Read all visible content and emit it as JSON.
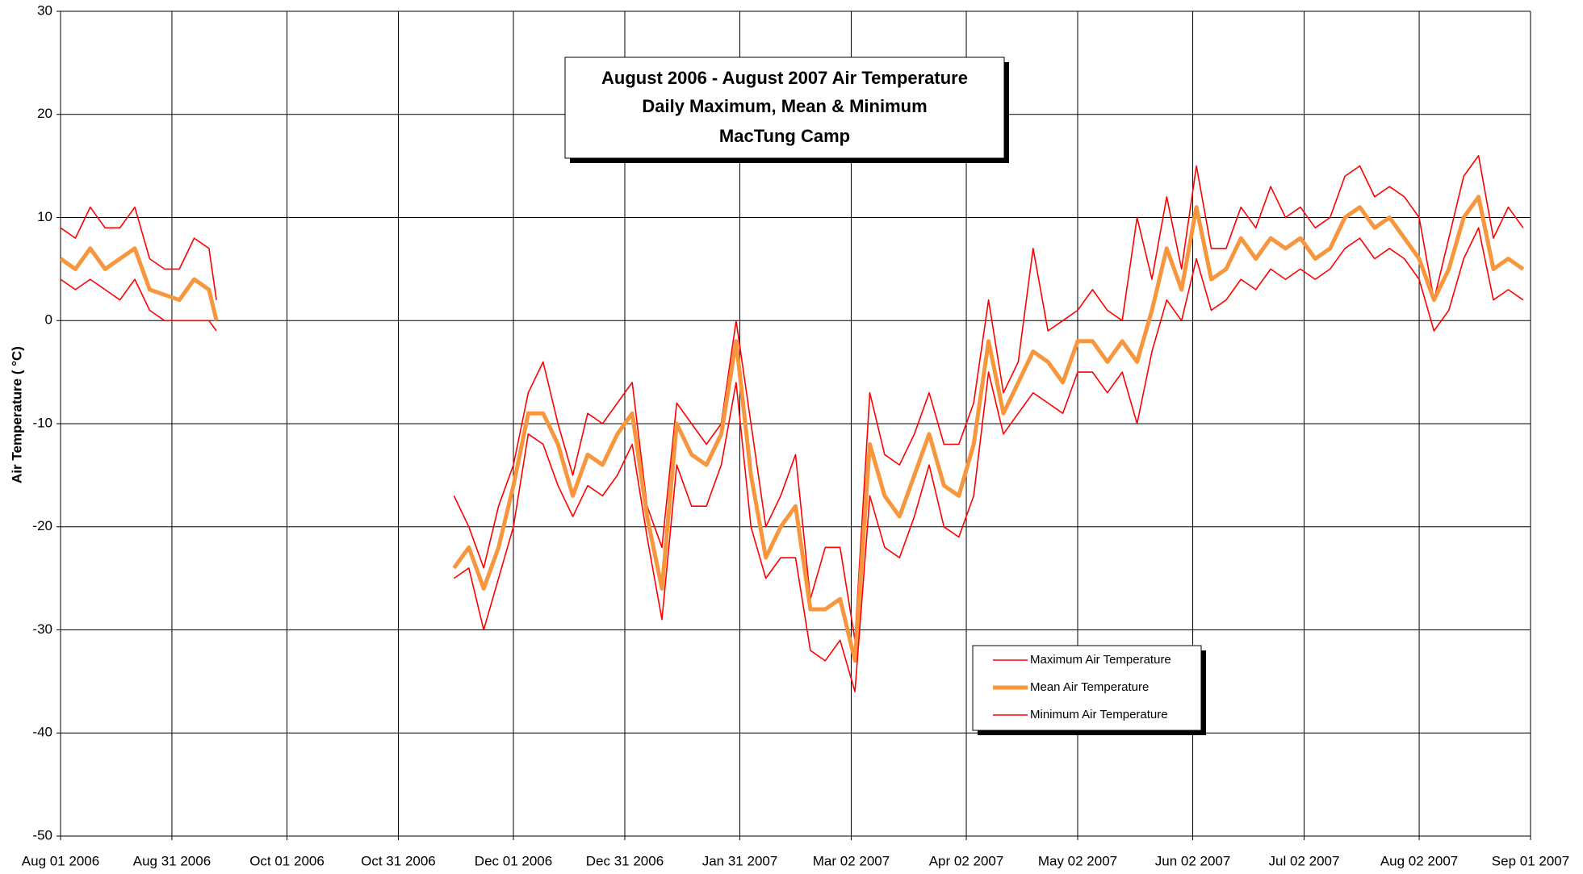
{
  "chart_data": {
    "type": "line",
    "title": "August 2006 - August 2007 Air Temperature",
    "subtitle": "Daily Maximum, Mean & Minimum",
    "site": "MacTung Camp",
    "ylabel": "Air Temperature ( °C)",
    "x": [
      "2006-08-01",
      "2006-08-05",
      "2006-08-09",
      "2006-08-13",
      "2006-08-17",
      "2006-08-21",
      "2006-08-25",
      "2006-08-29",
      "2006-09-02",
      "2006-09-06",
      "2006-09-10",
      "2006-09-12",
      "2006-10-15",
      "2006-11-15",
      "2006-11-19",
      "2006-11-23",
      "2006-11-27",
      "2006-12-01",
      "2006-12-05",
      "2006-12-09",
      "2006-12-13",
      "2006-12-17",
      "2006-12-21",
      "2006-12-25",
      "2006-12-29",
      "2007-01-02",
      "2007-01-06",
      "2007-01-10",
      "2007-01-14",
      "2007-01-18",
      "2007-01-22",
      "2007-01-26",
      "2007-01-30",
      "2007-02-03",
      "2007-02-07",
      "2007-02-11",
      "2007-02-15",
      "2007-02-19",
      "2007-02-23",
      "2007-02-27",
      "2007-03-03",
      "2007-03-07",
      "2007-03-11",
      "2007-03-15",
      "2007-03-19",
      "2007-03-23",
      "2007-03-27",
      "2007-03-31",
      "2007-04-04",
      "2007-04-08",
      "2007-04-12",
      "2007-04-16",
      "2007-04-20",
      "2007-04-24",
      "2007-04-28",
      "2007-05-02",
      "2007-05-06",
      "2007-05-10",
      "2007-05-14",
      "2007-05-18",
      "2007-05-22",
      "2007-05-26",
      "2007-05-30",
      "2007-06-03",
      "2007-06-07",
      "2007-06-11",
      "2007-06-15",
      "2007-06-19",
      "2007-06-23",
      "2007-06-27",
      "2007-07-01",
      "2007-07-05",
      "2007-07-09",
      "2007-07-13",
      "2007-07-17",
      "2007-07-21",
      "2007-07-25",
      "2007-07-29",
      "2007-08-02",
      "2007-08-06",
      "2007-08-10",
      "2007-08-14",
      "2007-08-18",
      "2007-08-22",
      "2007-08-26",
      "2007-08-30"
    ],
    "series": [
      {
        "name": "Maximum Air Temperature",
        "color": "#ff0000",
        "values": [
          9,
          8,
          11,
          9,
          9,
          11,
          6,
          5,
          5,
          8,
          7,
          2,
          null,
          -17,
          -20,
          -24,
          -18,
          -14,
          -7,
          -4,
          -10,
          -15,
          -9,
          -10,
          -8,
          -6,
          -18,
          -22,
          -8,
          -10,
          -12,
          -10,
          0,
          -10,
          -20,
          -17,
          -13,
          -27,
          -22,
          -22,
          -31,
          -7,
          -13,
          -14,
          -11,
          -7,
          -12,
          -12,
          -8,
          2,
          -7,
          -4,
          7,
          -1,
          0,
          1,
          3,
          1,
          0,
          10,
          4,
          12,
          5,
          15,
          7,
          7,
          11,
          9,
          13,
          10,
          11,
          9,
          10,
          14,
          15,
          12,
          13,
          12,
          10,
          2,
          8,
          14,
          16,
          8,
          11,
          9
        ]
      },
      {
        "name": "Mean Air Temperature",
        "color": "#f7963c",
        "values": [
          6,
          5,
          7,
          5,
          6,
          7,
          3,
          2.5,
          2,
          4,
          3,
          0,
          null,
          -24,
          -22,
          -26,
          -22,
          -16,
          -9,
          -9,
          -12,
          -17,
          -13,
          -14,
          -11,
          -9,
          -19,
          -26,
          -10,
          -13,
          -14,
          -11,
          -2,
          -15,
          -23,
          -20,
          -18,
          -28,
          -28,
          -27,
          -33,
          -12,
          -17,
          -19,
          -15,
          -11,
          -16,
          -17,
          -12,
          -2,
          -9,
          -6,
          -3,
          -4,
          -6,
          -2,
          -2,
          -4,
          -2,
          -4,
          1,
          7,
          3,
          11,
          4,
          5,
          8,
          6,
          8,
          7,
          8,
          6,
          7,
          10,
          11,
          9,
          10,
          8,
          6,
          2,
          5,
          10,
          12,
          5,
          6,
          5
        ]
      },
      {
        "name": "Minimum Air Temperature",
        "color": "#ff0000",
        "values": [
          4,
          3,
          4,
          3,
          2,
          4,
          1,
          0,
          0,
          0,
          0,
          -1,
          null,
          -25,
          -24,
          -30,
          -25,
          -20,
          -11,
          -12,
          -16,
          -19,
          -16,
          -17,
          -15,
          -12,
          -21,
          -29,
          -14,
          -18,
          -18,
          -14,
          -6,
          -20,
          -25,
          -23,
          -23,
          -32,
          -33,
          -31,
          -36,
          -17,
          -22,
          -23,
          -19,
          -14,
          -20,
          -21,
          -17,
          -5,
          -11,
          -9,
          -7,
          -8,
          -9,
          -5,
          -5,
          -7,
          -5,
          -10,
          -3,
          2,
          0,
          6,
          1,
          2,
          4,
          3,
          5,
          4,
          5,
          4,
          5,
          7,
          8,
          6,
          7,
          6,
          4,
          -1,
          1,
          6,
          9,
          2,
          3,
          2
        ]
      }
    ],
    "xlim": [
      "2006-08-01",
      "2007-09-01"
    ],
    "xticks": [
      {
        "value": "2006-08-01",
        "label": "Aug 01 2006"
      },
      {
        "value": "2006-08-31",
        "label": "Aug 31 2006"
      },
      {
        "value": "2006-10-01",
        "label": "Oct 01 2006"
      },
      {
        "value": "2006-10-31",
        "label": "Oct 31 2006"
      },
      {
        "value": "2006-12-01",
        "label": "Dec 01 2006"
      },
      {
        "value": "2006-12-31",
        "label": "Dec 31 2006"
      },
      {
        "value": "2007-01-31",
        "label": "Jan 31 2007"
      },
      {
        "value": "2007-03-02",
        "label": "Mar 02 2007"
      },
      {
        "value": "2007-04-02",
        "label": "Apr 02 2007"
      },
      {
        "value": "2007-05-02",
        "label": "May 02 2007"
      },
      {
        "value": "2007-06-02",
        "label": "Jun 02 2007"
      },
      {
        "value": "2007-07-02",
        "label": "Jul 02 2007"
      },
      {
        "value": "2007-08-02",
        "label": "Aug 02 2007"
      },
      {
        "value": "2007-09-01",
        "label": "Sep 01 2007"
      }
    ],
    "ylim": [
      -50,
      30
    ],
    "yticks": [
      -50,
      -40,
      -30,
      -20,
      -10,
      0,
      10,
      20,
      30
    ],
    "grid": true
  }
}
